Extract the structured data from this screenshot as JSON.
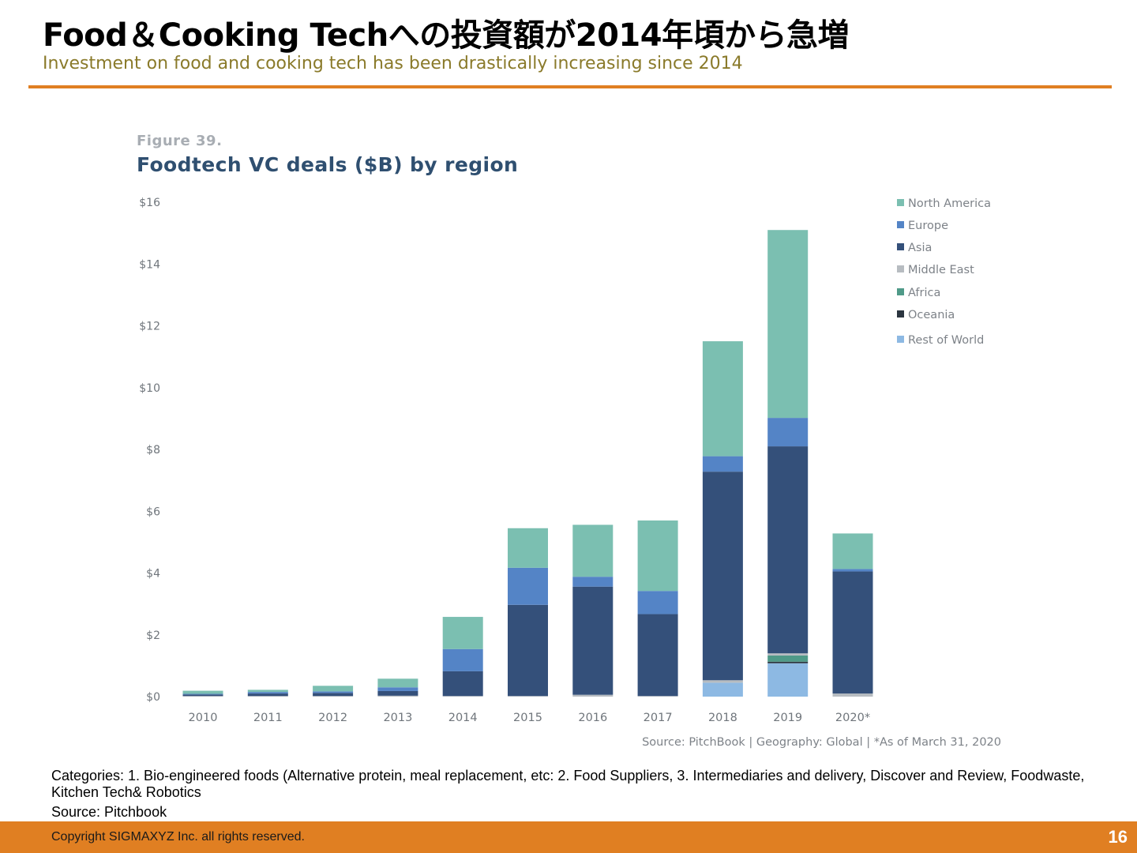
{
  "slide": {
    "title": "Food＆Cooking Techへの投資額が2014年頃から急増",
    "subtitle": "Investment on food and cooking tech has been drastically increasing since 2014",
    "figure_label": "Figure 39.",
    "figure_title": "Foodtech VC deals ($B) by region",
    "note": "Categories: 1. Bio-engineered foods (Alternative protein, meal replacement, etc: 2. Food Suppliers, 3. Intermediaries and delivery, Discover and Review, Foodwaste, Kitchen Tech& Robotics",
    "note_source": "Source: Pitchbook",
    "copyright": "Copyright SIGMAXYZ Inc. all rights reserved.",
    "page_number": "16"
  },
  "chart_data": {
    "type": "bar",
    "stacked": true,
    "title": "Foodtech VC deals ($B) by region",
    "categories": [
      "2010",
      "2011",
      "2012",
      "2013",
      "2014",
      "2015",
      "2016",
      "2017",
      "2018",
      "2019",
      "2020*"
    ],
    "ylim": [
      0,
      16
    ],
    "y_ticks": [
      "$0",
      "$2",
      "$4",
      "$6",
      "$8",
      "$10",
      "$12",
      "$14",
      "$16"
    ],
    "grid": false,
    "legend_position": "right",
    "source_note": "Source: PitchBook  |  Geography: Global  |  *As of March 31, 2020",
    "series": [
      {
        "name": "Rest of World",
        "color": "#8db9e3",
        "values": [
          0,
          0,
          0,
          0,
          0,
          0,
          0,
          0,
          0.45,
          1.08,
          0
        ]
      },
      {
        "name": "Oceania",
        "color": "#2b3540",
        "values": [
          0,
          0,
          0,
          0,
          0,
          0,
          0,
          0,
          0,
          0.05,
          0
        ]
      },
      {
        "name": "Africa",
        "color": "#4f9a88",
        "values": [
          0,
          0,
          0,
          0,
          0,
          0,
          0,
          0,
          0,
          0.2,
          0
        ]
      },
      {
        "name": "Middle East",
        "color": "#b7bcc1",
        "values": [
          0.02,
          0.02,
          0.02,
          0.03,
          0.02,
          0.02,
          0.06,
          0.02,
          0.08,
          0.07,
          0.1
        ]
      },
      {
        "name": "Asia",
        "color": "#34507a",
        "values": [
          0.05,
          0.08,
          0.1,
          0.15,
          0.8,
          2.95,
          3.5,
          2.65,
          6.75,
          6.7,
          3.95
        ]
      },
      {
        "name": "Europe",
        "color": "#5484c6",
        "values": [
          0.02,
          0.05,
          0.05,
          0.12,
          0.72,
          1.2,
          0.32,
          0.75,
          0.5,
          0.92,
          0.08
        ]
      },
      {
        "name": "North America",
        "color": "#7bbfb1",
        "values": [
          0.1,
          0.07,
          0.18,
          0.28,
          1.04,
          1.28,
          1.68,
          2.28,
          3.72,
          6.08,
          1.15
        ]
      }
    ],
    "legend_order": [
      "North America",
      "Europe",
      "Asia",
      "Middle East",
      "Africa",
      "Oceania",
      "Rest of World"
    ]
  }
}
